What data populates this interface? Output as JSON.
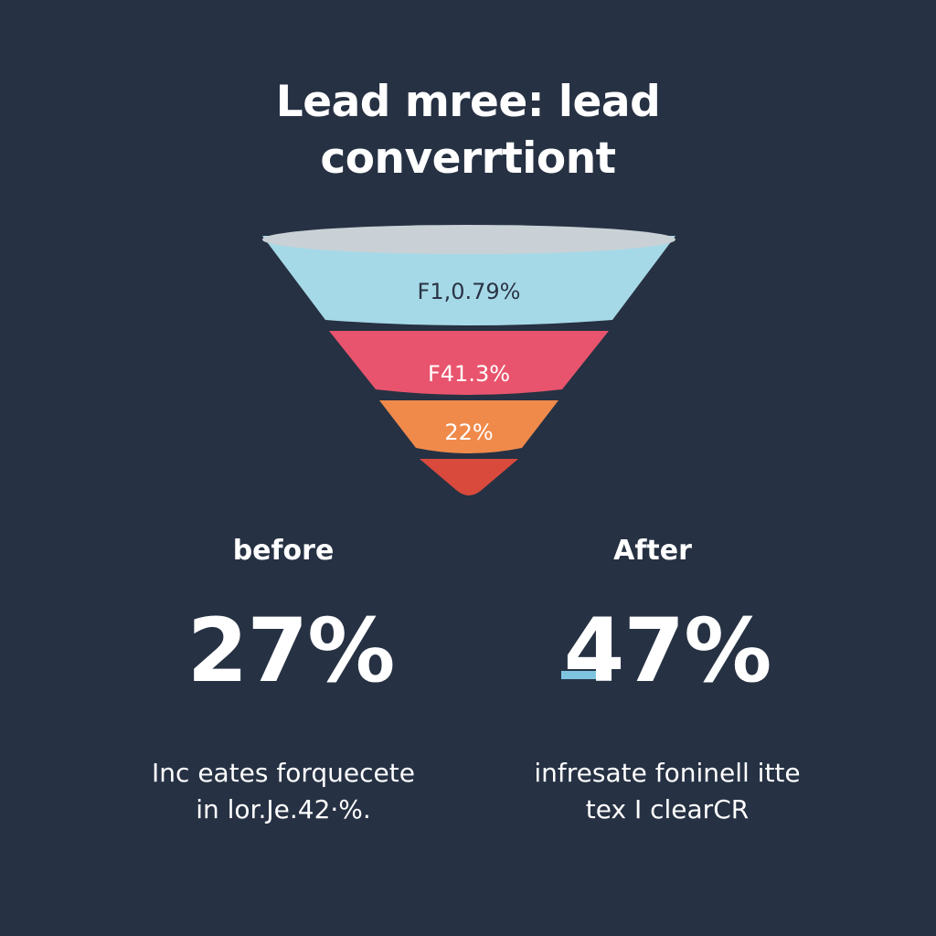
{
  "chart_data": {
    "type": "funnel",
    "title_lines": [
      "Lead mree: lead",
      "converrtiont"
    ],
    "stages": [
      {
        "label": "F1,0.79%",
        "color": "#a6d9e7",
        "text_color": "#2a3446"
      },
      {
        "label": "F41.3%",
        "color": "#e8546d",
        "text_color": "#ffffff"
      },
      {
        "label": "22%",
        "color": "#f08a4b",
        "text_color": "#ffffff"
      },
      {
        "label": "",
        "color": "#d94a3d",
        "text_color": "#ffffff"
      }
    ],
    "rim_color": "#c9d1d6",
    "comparison": {
      "before": {
        "label": "before",
        "value": "27%",
        "caption_lines": [
          "Inc eates forquecete",
          "in lor.Je.42·%."
        ]
      },
      "after": {
        "label": "After",
        "value": "47%",
        "accent_color": "#7fc4df",
        "caption_lines": [
          "infresate foninell itte",
          "tex I clearCR"
        ]
      }
    }
  },
  "colors": {
    "background": "#263143",
    "text": "#ffffff"
  }
}
